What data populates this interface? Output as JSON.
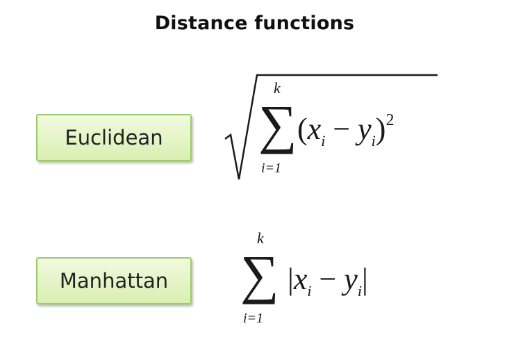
{
  "title": "Distance functions",
  "labels": {
    "euclidean": "Euclidean",
    "manhattan": "Manhattan"
  },
  "formulas": {
    "euclidean": {
      "upper_limit": "k",
      "lower_limit": "i=1",
      "exponent": "2"
    },
    "manhattan": {
      "upper_limit": "k",
      "lower_limit": "i=1"
    }
  },
  "colors": {
    "box_fill_top": "#f1fadf",
    "box_fill_bottom": "#d9efb2",
    "box_border": "#9ccc66"
  }
}
